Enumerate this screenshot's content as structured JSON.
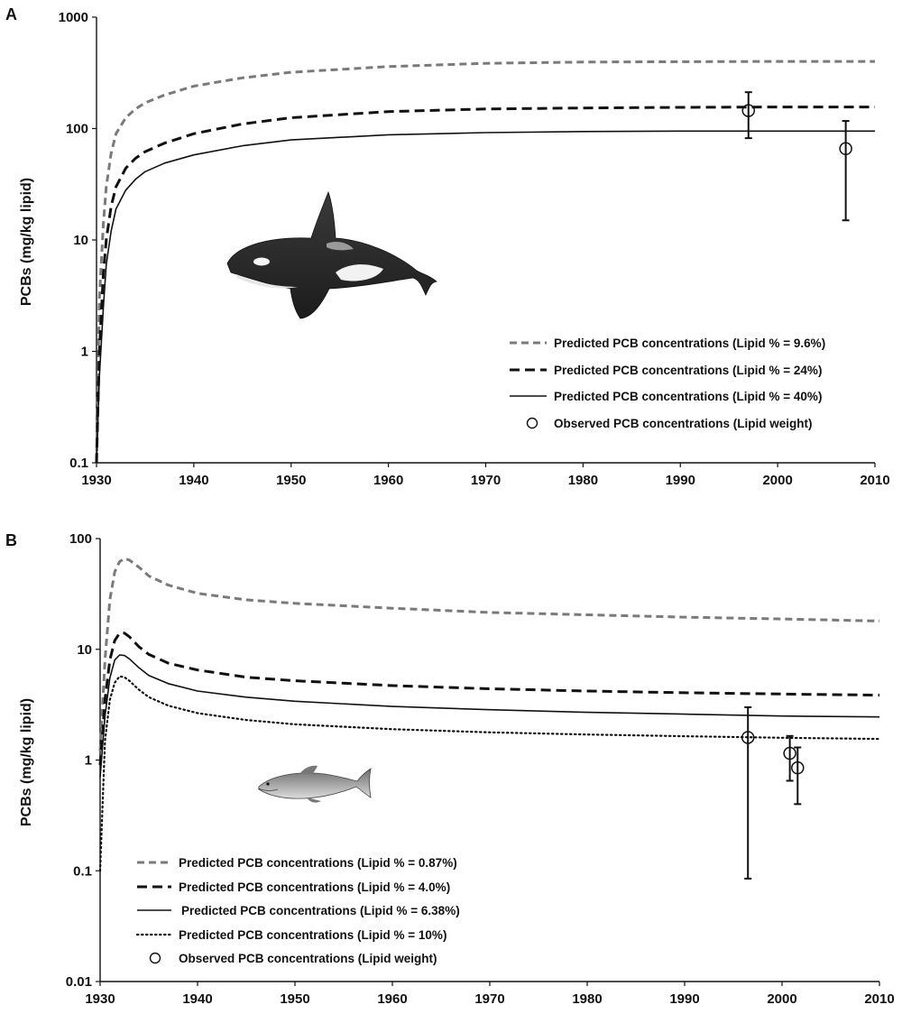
{
  "chart_data": [
    {
      "panel_label": "A",
      "type": "line",
      "ylabel": "PCBs (mg/kg lipid)",
      "xlim": [
        1930,
        2010
      ],
      "ylim": [
        0.1,
        1000
      ],
      "yscale": "log",
      "x_ticks": [
        "1930",
        "1940",
        "1950",
        "1960",
        "1970",
        "1980",
        "1990",
        "2000",
        "2010"
      ],
      "y_ticks": [
        "0.1",
        "1",
        "10",
        "100",
        "1000"
      ],
      "legend_position": "lower-right",
      "picture": "killer-whale",
      "series": [
        {
          "name": "Predicted PCB concentrations (Lipid % = 9.6%)",
          "style": "dashed-gray",
          "color": "#7a7a7a",
          "x": [
            1930,
            1930.3,
            1930.7,
            1931,
            1931.5,
            1932,
            1933,
            1934,
            1935,
            1937,
            1940,
            1945,
            1950,
            1960,
            1970,
            1980,
            1990,
            2000,
            2010
          ],
          "y": [
            0.1,
            3,
            14,
            30,
            60,
            90,
            125,
            150,
            170,
            200,
            240,
            285,
            320,
            360,
            385,
            395,
            398,
            400,
            400
          ]
        },
        {
          "name": "Predicted PCB concentrations (Lipid % = 24%)",
          "style": "dashed-black",
          "color": "#111111",
          "x": [
            1930,
            1930.3,
            1930.7,
            1931,
            1931.5,
            1932,
            1933,
            1934,
            1935,
            1937,
            1940,
            1945,
            1950,
            1960,
            1970,
            1980,
            1990,
            2000,
            2010
          ],
          "y": [
            0.1,
            1,
            5,
            10,
            20,
            30,
            44,
            54,
            62,
            74,
            90,
            110,
            125,
            142,
            150,
            153,
            155,
            156,
            156
          ]
        },
        {
          "name": "Predicted PCB concentrations (Lipid % = 40%)",
          "style": "solid",
          "color": "#111111",
          "x": [
            1930,
            1930.3,
            1930.7,
            1931,
            1931.5,
            1932,
            1933,
            1934,
            1935,
            1937,
            1940,
            1945,
            1950,
            1960,
            1970,
            1980,
            1990,
            2000,
            2010
          ],
          "y": [
            0.1,
            0.6,
            2.5,
            6,
            12,
            19,
            28,
            35,
            41,
            49,
            58,
            70,
            79,
            88,
            92,
            94,
            95,
            95,
            95
          ]
        }
      ],
      "observed": {
        "name": "Observed PCB concentrations (Lipid weight)",
        "points": [
          {
            "x": 1997,
            "y": 145,
            "low": 82,
            "high": 212
          },
          {
            "x": 2007,
            "y": 66,
            "low": 15,
            "high": 117
          }
        ]
      }
    },
    {
      "panel_label": "B",
      "type": "line",
      "ylabel": "PCBs (mg/kg lipid)",
      "xlim": [
        1930,
        2010
      ],
      "ylim": [
        0.01,
        100
      ],
      "yscale": "log",
      "x_ticks": [
        "1930",
        "1940",
        "1950",
        "1960",
        "1970",
        "1980",
        "1990",
        "2000",
        "2010"
      ],
      "y_ticks": [
        "0.01",
        "0.1",
        "1",
        "10",
        "100"
      ],
      "legend_position": "lower-left",
      "picture": "salmon",
      "series": [
        {
          "name": "Predicted PCB concentrations (Lipid % = 0.87%)",
          "style": "dashed-gray",
          "color": "#7a7a7a",
          "x": [
            1930,
            1930.5,
            1931,
            1931.5,
            1932,
            1932.5,
            1933,
            1934,
            1935,
            1937,
            1940,
            1945,
            1950,
            1960,
            1970,
            1980,
            1990,
            2000,
            2010
          ],
          "y": [
            1.2,
            8,
            28,
            50,
            62,
            66,
            64,
            55,
            46,
            38,
            32,
            28,
            26,
            23.5,
            21.5,
            20.5,
            19.5,
            18.8,
            18
          ]
        },
        {
          "name": "Predicted PCB concentrations (Lipid % = 4.0%)",
          "style": "dashed-black",
          "color": "#111111",
          "x": [
            1930,
            1930.5,
            1931,
            1931.5,
            1932,
            1932.5,
            1933,
            1934,
            1935,
            1937,
            1940,
            1945,
            1950,
            1960,
            1970,
            1980,
            1990,
            2000,
            2010
          ],
          "y": [
            0.9,
            3.5,
            8,
            12,
            14,
            14,
            13,
            10.5,
            9,
            7.5,
            6.5,
            5.6,
            5.2,
            4.7,
            4.4,
            4.2,
            4.05,
            3.95,
            3.85
          ]
        },
        {
          "name": "Predicted PCB concentrations (Lipid % = 6.38%)",
          "style": "solid",
          "color": "#111111",
          "x": [
            1930,
            1930.5,
            1931,
            1931.5,
            1932,
            1932.5,
            1933,
            1934,
            1935,
            1937,
            1940,
            1945,
            1950,
            1960,
            1970,
            1980,
            1990,
            2000,
            2010
          ],
          "y": [
            0.7,
            2.5,
            5.5,
            8,
            8.9,
            8.8,
            8.2,
            6.8,
            5.8,
            4.9,
            4.2,
            3.7,
            3.4,
            3.05,
            2.85,
            2.7,
            2.6,
            2.5,
            2.45
          ]
        },
        {
          "name": "Predicted PCB concentrations (Lipid % = 10%)",
          "style": "dotted",
          "color": "#111111",
          "x": [
            1930,
            1930.5,
            1931,
            1931.5,
            1932,
            1932.5,
            1933,
            1934,
            1935,
            1937,
            1940,
            1945,
            1950,
            1960,
            1970,
            1980,
            1990,
            2000,
            2010
          ],
          "y": [
            0.1,
            1.5,
            3.5,
            5,
            5.7,
            5.6,
            5.2,
            4.3,
            3.7,
            3.1,
            2.65,
            2.3,
            2.1,
            1.9,
            1.78,
            1.7,
            1.64,
            1.59,
            1.55
          ]
        }
      ],
      "observed": {
        "name": "Observed PCB concentrations (Lipid weight)",
        "points": [
          {
            "x": 1996.5,
            "y": 1.6,
            "low": 0.085,
            "high": 3.0
          },
          {
            "x": 2000.8,
            "y": 1.15,
            "low": 0.65,
            "high": 1.65
          },
          {
            "x": 2001.6,
            "y": 0.85,
            "low": 0.4,
            "high": 1.3
          }
        ]
      }
    }
  ]
}
